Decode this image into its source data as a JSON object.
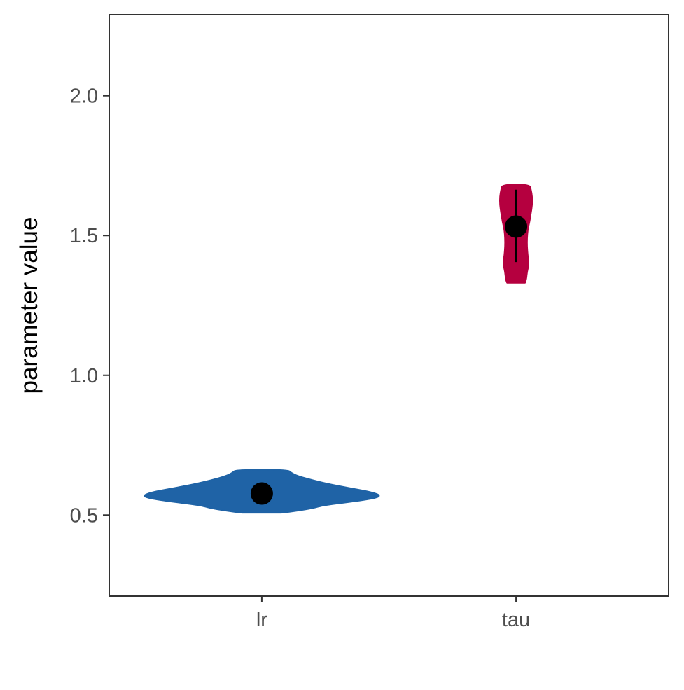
{
  "chart_data": {
    "type": "violin",
    "title": "",
    "xlabel": "",
    "ylabel": "parameter value",
    "ylim": [
      0.21,
      2.29
    ],
    "yticks": [
      0.5,
      1.0,
      1.5,
      2.0
    ],
    "ytick_labels": [
      "0.5",
      "1.0",
      "1.5",
      "2.0"
    ],
    "grid": false,
    "legend": "none",
    "categories": [
      "lr",
      "tau"
    ],
    "series": [
      {
        "category": "lr",
        "color": "#1f63a6",
        "mean": 0.577,
        "interval": [
          0.577,
          0.577
        ],
        "density": [
          [
            0.508,
            0.3
          ],
          [
            0.515,
            0.55
          ],
          [
            0.525,
            0.8
          ],
          [
            0.535,
            0.95
          ],
          [
            0.548,
            1.4
          ],
          [
            0.56,
            1.75
          ],
          [
            0.57,
            1.84
          ],
          [
            0.582,
            1.7
          ],
          [
            0.595,
            1.4
          ],
          [
            0.61,
            1.05
          ],
          [
            0.625,
            0.78
          ],
          [
            0.64,
            0.55
          ],
          [
            0.652,
            0.45
          ],
          [
            0.662,
            0.4
          ]
        ]
      },
      {
        "category": "tau",
        "color": "#b5003f",
        "mean": 1.532,
        "interval": [
          1.405,
          1.664
        ],
        "density": [
          [
            1.331,
            0.14
          ],
          [
            1.345,
            0.16
          ],
          [
            1.37,
            0.17
          ],
          [
            1.4,
            0.2
          ],
          [
            1.43,
            0.18
          ],
          [
            1.46,
            0.17
          ],
          [
            1.49,
            0.17
          ],
          [
            1.52,
            0.18
          ],
          [
            1.55,
            0.21
          ],
          [
            1.58,
            0.23
          ],
          [
            1.61,
            0.25
          ],
          [
            1.64,
            0.25
          ],
          [
            1.665,
            0.23
          ],
          [
            1.683,
            0.21
          ]
        ]
      }
    ]
  }
}
